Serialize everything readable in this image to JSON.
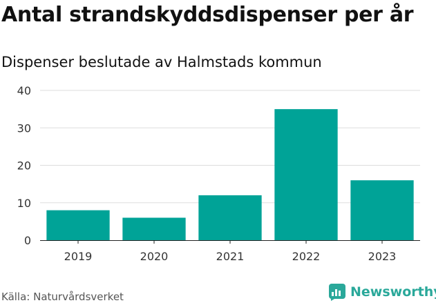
{
  "header": {
    "title": "Antal strandskyddsdispenser per år",
    "subtitle": "Dispenser beslutade av Halmstads kommun"
  },
  "footer": {
    "source": "Källa: Naturvårdsverket",
    "brand": "Newsworthy",
    "brand_icon": "newsworthy-logo-icon"
  },
  "colors": {
    "bar": "#00a397",
    "grid": "#dddddd",
    "axis": "#222222",
    "text": "#333333",
    "brand": "#2aa89a"
  },
  "chart_data": {
    "type": "bar",
    "title": "Antal strandskyddsdispenser per år",
    "subtitle": "Dispenser beslutade av Halmstads kommun",
    "categories": [
      "2019",
      "2020",
      "2021",
      "2022",
      "2023"
    ],
    "values": [
      8,
      6,
      12,
      35,
      16
    ],
    "xlabel": "",
    "ylabel": "",
    "ylim": [
      0,
      40
    ],
    "yticks": [
      0,
      10,
      20,
      30,
      40
    ],
    "grid": true,
    "legend": "none"
  }
}
